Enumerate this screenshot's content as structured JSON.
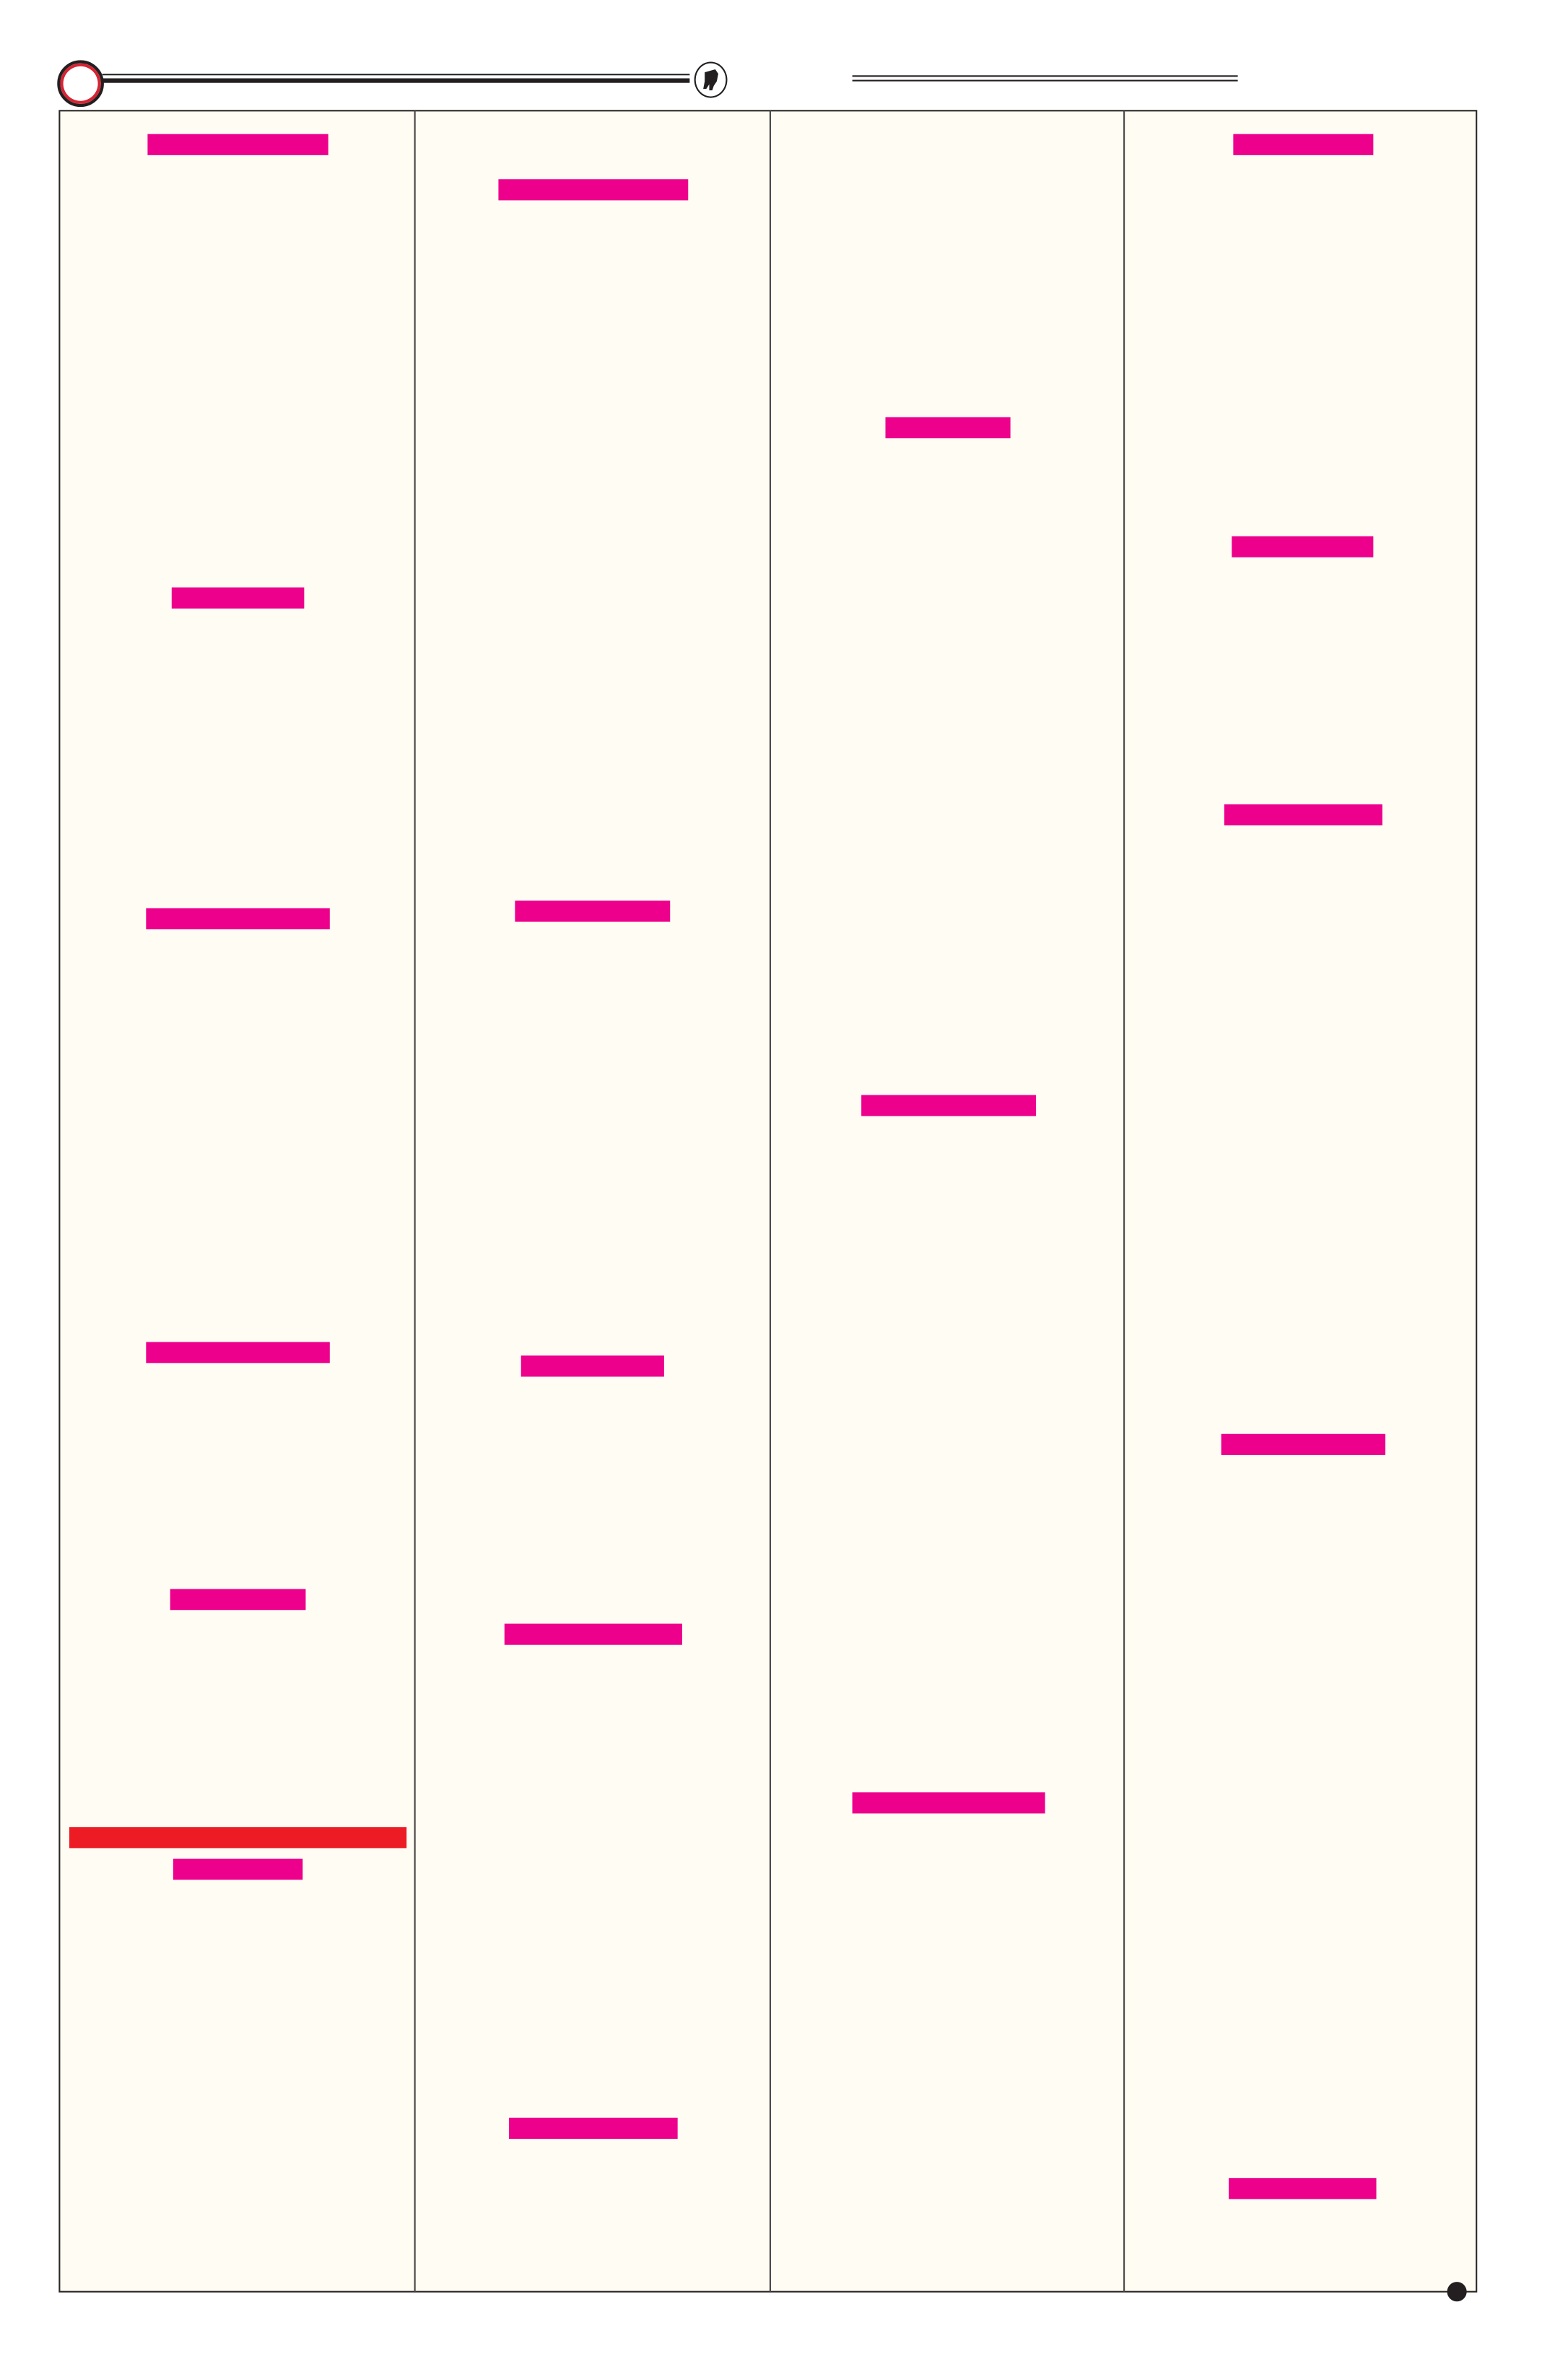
{
  "colors": {
    "page_background": "#fffcf3",
    "redaction": "#ec008c",
    "redaction_alt": "#ed1c24",
    "rule": "#231f20",
    "ring_accent": "#d62433"
  },
  "header": {
    "left_ornament": "ring",
    "emblem": "bull-emblem-icon"
  },
  "columns": [
    {
      "redaction_blocks": 7
    },
    {
      "redaction_blocks": 5
    },
    {
      "redaction_blocks": 3
    },
    {
      "redaction_blocks": 5
    }
  ]
}
